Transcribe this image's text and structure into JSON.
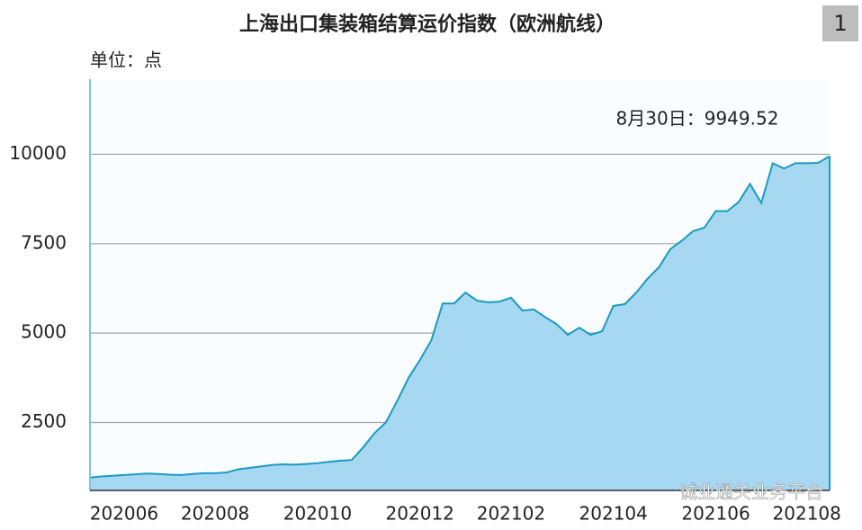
{
  "chart_data": {
    "type": "area",
    "title": "上海出口集装箱结算运价指数（欧洲航线）",
    "y_unit_label": "单位：点",
    "badge": "1",
    "annotation": "8月30日：9949.52",
    "watermark": "诚业通关业务平台",
    "categories": [
      null,
      null,
      null,
      "202006",
      null,
      null,
      null,
      null,
      null,
      null,
      null,
      "202008",
      null,
      null,
      null,
      null,
      null,
      null,
      null,
      null,
      "202010",
      null,
      null,
      null,
      null,
      null,
      null,
      null,
      null,
      "202012",
      null,
      null,
      null,
      null,
      null,
      null,
      null,
      "202102",
      null,
      null,
      null,
      null,
      null,
      null,
      null,
      null,
      "202104",
      null,
      null,
      null,
      null,
      null,
      null,
      null,
      null,
      "202106",
      null,
      null,
      null,
      null,
      null,
      null,
      null,
      "202108",
      null,
      null
    ],
    "values": [
      960,
      990,
      1010,
      1030,
      1050,
      1070,
      1060,
      1040,
      1030,
      1060,
      1080,
      1080,
      1100,
      1190,
      1230,
      1270,
      1310,
      1330,
      1320,
      1340,
      1360,
      1400,
      1430,
      1450,
      1800,
      2200,
      2500,
      3100,
      3750,
      4250,
      4800,
      5830,
      5830,
      6130,
      5910,
      5860,
      5880,
      5990,
      5630,
      5660,
      5450,
      5250,
      4950,
      5150,
      4950,
      5050,
      5760,
      5810,
      6130,
      6520,
      6840,
      7350,
      7580,
      7850,
      7950,
      8410,
      8410,
      8660,
      9170,
      8640,
      9750,
      9600,
      9750,
      9750,
      9760,
      9949.52
    ],
    "color": "#1a9bc0",
    "fill_color": "#a6d8f1",
    "ylim": [
      600,
      12100
    ],
    "yticks": [
      2500,
      5000,
      7500,
      10000
    ],
    "grid": true
  }
}
